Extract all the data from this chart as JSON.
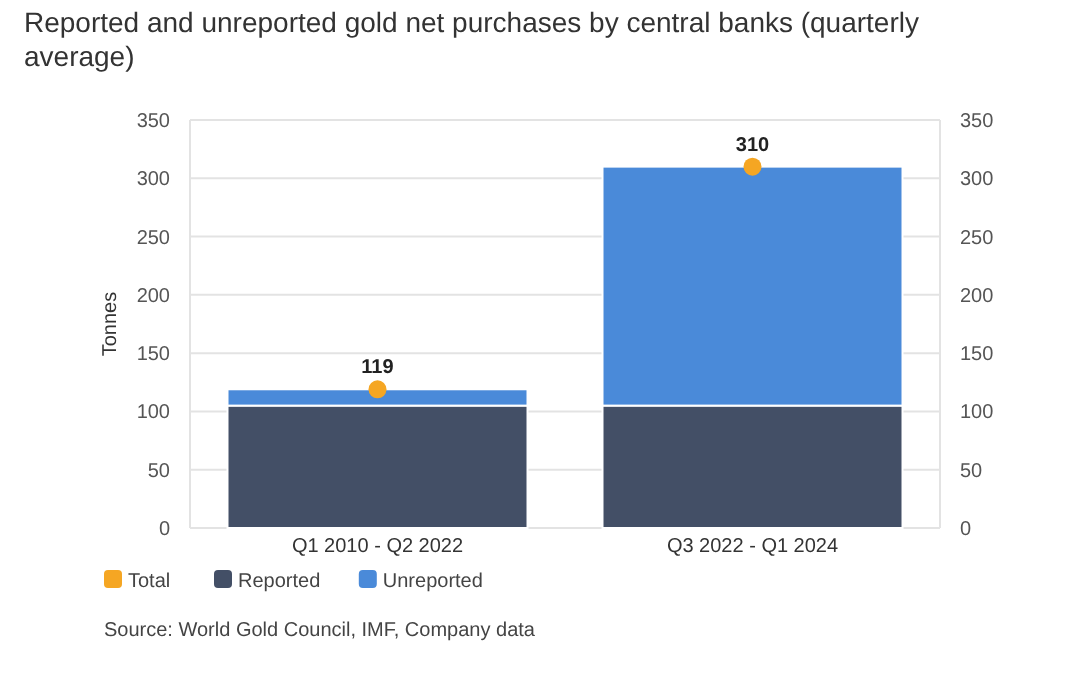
{
  "chart_data": {
    "type": "bar",
    "title": "Reported and unreported gold net purchases by central banks (quarterly average)",
    "ylabel": "Tonnes",
    "categories": [
      "Q1 2010 - Q2 2022",
      "Q3 2022 - Q1 2024"
    ],
    "stacked": true,
    "series": [
      {
        "name": "Total",
        "type": "scatter",
        "x": [
          "Q1 2010 - Q2 2022",
          "Q3 2022 - Q1 2024"
        ],
        "color": "#f5a623",
        "values": [
          119,
          310
        ],
        "value_labels": [
          "119",
          "310"
        ]
      },
      {
        "name": "Reported",
        "color": "#434f66",
        "values": [
          105,
          105
        ]
      },
      {
        "name": "Unreported",
        "color": "#4a8ad9",
        "values": [
          14,
          205
        ]
      }
    ],
    "ylim": [
      0,
      350
    ],
    "yticks": [
      0,
      50,
      100,
      150,
      200,
      250,
      300,
      350
    ],
    "y2lim": [
      0,
      350
    ],
    "y2ticks": [
      0,
      50,
      100,
      150,
      200,
      250,
      300,
      350
    ],
    "grid": "y",
    "legend": "bottom left",
    "marker": "circle",
    "annotations": [
      "Source: World Gold Council, IMF, Company data"
    ]
  }
}
